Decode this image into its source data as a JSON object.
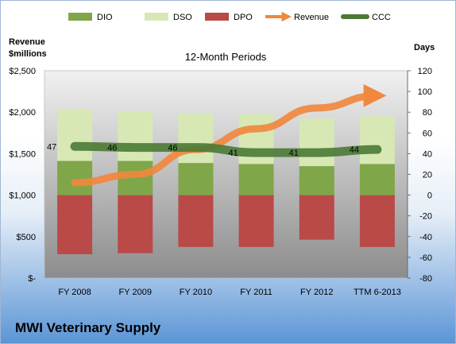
{
  "chart_data": {
    "type": "bar",
    "title": "MWI Veterinary Supply",
    "subtitle": "12-Month Periods",
    "categories": [
      "FY 2008",
      "FY 2009",
      "FY 2010",
      "FY 2011",
      "FY 2012",
      "TTM 6-2013"
    ],
    "y_left": {
      "label": "Revenue $millions",
      "label_lines": [
        "Revenue",
        "$millions"
      ],
      "ylim": [
        0,
        2500
      ],
      "ticks": [
        {
          "value": 0,
          "label": "$-"
        },
        {
          "value": 500,
          "label": "$500"
        },
        {
          "value": 1000,
          "label": "$1,000"
        },
        {
          "value": 1500,
          "label": "$1,500"
        },
        {
          "value": 2000,
          "label": "$2,000"
        },
        {
          "value": 2500,
          "label": "$2,500"
        }
      ]
    },
    "y_right": {
      "label": "Days",
      "ylim": [
        -80,
        120
      ],
      "ticks": [
        -80,
        -60,
        -40,
        -20,
        0,
        20,
        40,
        60,
        80,
        100,
        120
      ]
    },
    "series": [
      {
        "name": "DIO",
        "axis": "right",
        "stack": "working",
        "color": "#7fa649",
        "values": [
          33,
          33,
          31,
          30,
          28,
          30
        ]
      },
      {
        "name": "DSO",
        "axis": "right",
        "stack": "working",
        "color": "#d7e8b5",
        "values": [
          50,
          48,
          48,
          48,
          46,
          46
        ]
      },
      {
        "name": "DPO",
        "axis": "right",
        "stack": "negative",
        "color": "#b94a48",
        "values": [
          -57,
          -56,
          -50,
          -50,
          -43,
          -50
        ]
      },
      {
        "name": "Revenue",
        "axis": "left",
        "type": "line",
        "color": "#f0883e",
        "values": [
          1150,
          1250,
          1550,
          1800,
          2050,
          2200
        ]
      },
      {
        "name": "CCC",
        "axis": "right",
        "type": "line",
        "color": "#4a7a35",
        "values": [
          47,
          46,
          46,
          41,
          41,
          44
        ],
        "labels": [
          "47",
          "46",
          "46",
          "41",
          "41",
          "44"
        ]
      }
    ],
    "legend": {
      "position": "top",
      "items": [
        "DIO",
        "DSO",
        "DPO",
        "Revenue",
        "CCC"
      ]
    },
    "grid": false,
    "plot_background": "gray gradient"
  }
}
